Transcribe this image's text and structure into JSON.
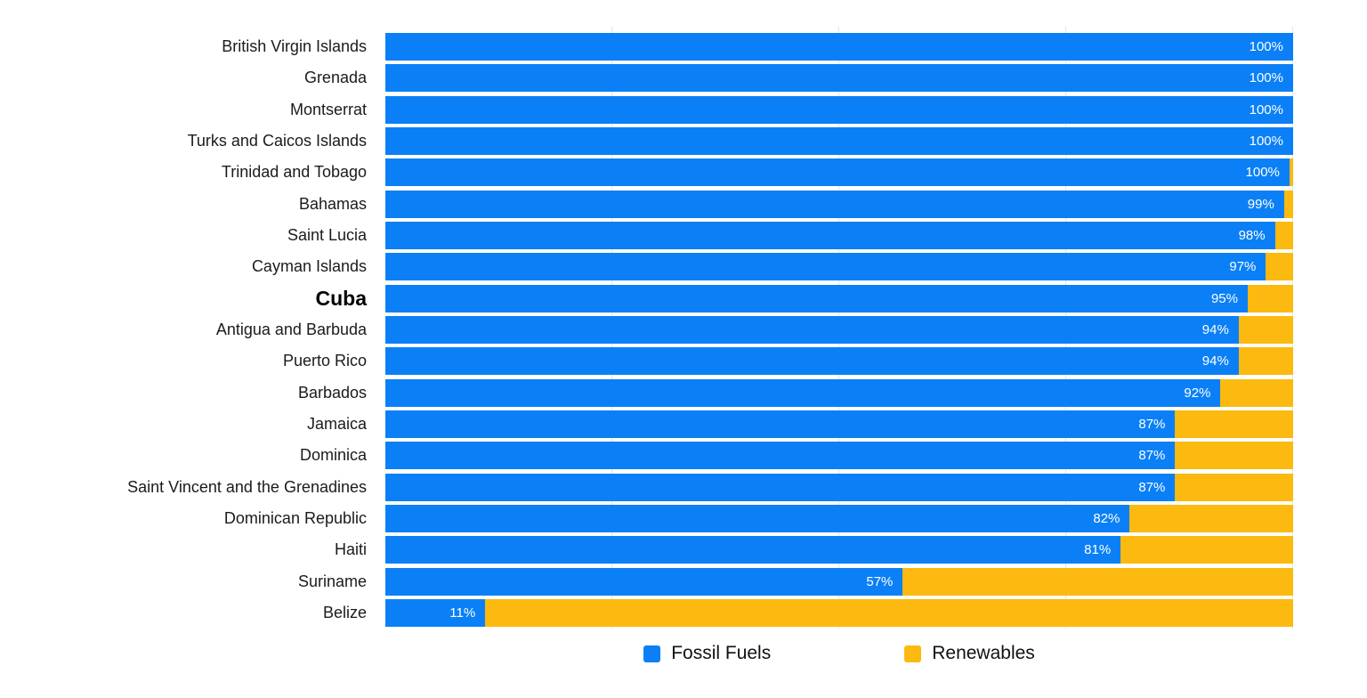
{
  "chart_data": {
    "type": "bar",
    "orientation": "horizontal",
    "stacked": true,
    "unit": "%",
    "xlim": [
      0,
      100
    ],
    "grid": true,
    "gridlines_pct": [
      25,
      50,
      75,
      100
    ],
    "legend_position": "bottom",
    "legend": [
      {
        "name": "Fossil Fuels",
        "color": "#0b80f6"
      },
      {
        "name": "Renewables",
        "color": "#fcb90f"
      }
    ],
    "rows": [
      {
        "country": "British Virgin Islands",
        "fossil_pct": 100,
        "renewables_pct": 0,
        "label": "100%",
        "emphasis": false
      },
      {
        "country": "Grenada",
        "fossil_pct": 100,
        "renewables_pct": 0,
        "label": "100%",
        "emphasis": false
      },
      {
        "country": "Montserrat",
        "fossil_pct": 100,
        "renewables_pct": 0,
        "label": "100%",
        "emphasis": false
      },
      {
        "country": "Turks and Caicos Islands",
        "fossil_pct": 100,
        "renewables_pct": 0,
        "label": "100%",
        "emphasis": false
      },
      {
        "country": "Trinidad and Tobago",
        "fossil_pct": 99.6,
        "renewables_pct": 0.4,
        "label": "100%",
        "emphasis": false
      },
      {
        "country": "Bahamas",
        "fossil_pct": 99,
        "renewables_pct": 1,
        "label": "99%",
        "emphasis": false
      },
      {
        "country": "Saint Lucia",
        "fossil_pct": 98,
        "renewables_pct": 2,
        "label": "98%",
        "emphasis": false
      },
      {
        "country": "Cayman Islands",
        "fossil_pct": 97,
        "renewables_pct": 3,
        "label": "97%",
        "emphasis": false
      },
      {
        "country": "Cuba",
        "fossil_pct": 95,
        "renewables_pct": 5,
        "label": "95%",
        "emphasis": true
      },
      {
        "country": "Antigua and Barbuda",
        "fossil_pct": 94,
        "renewables_pct": 6,
        "label": "94%",
        "emphasis": false
      },
      {
        "country": "Puerto Rico",
        "fossil_pct": 94,
        "renewables_pct": 6,
        "label": "94%",
        "emphasis": false
      },
      {
        "country": "Barbados",
        "fossil_pct": 92,
        "renewables_pct": 8,
        "label": "92%",
        "emphasis": false
      },
      {
        "country": "Jamaica",
        "fossil_pct": 87,
        "renewables_pct": 13,
        "label": "87%",
        "emphasis": false
      },
      {
        "country": "Dominica",
        "fossil_pct": 87,
        "renewables_pct": 13,
        "label": "87%",
        "emphasis": false
      },
      {
        "country": "Saint Vincent and the Grenadines",
        "fossil_pct": 87,
        "renewables_pct": 13,
        "label": "87%",
        "emphasis": false
      },
      {
        "country": "Dominican Republic",
        "fossil_pct": 82,
        "renewables_pct": 18,
        "label": "82%",
        "emphasis": false
      },
      {
        "country": "Haiti",
        "fossil_pct": 81,
        "renewables_pct": 19,
        "label": "81%",
        "emphasis": false
      },
      {
        "country": "Suriname",
        "fossil_pct": 57,
        "renewables_pct": 43,
        "label": "57%",
        "emphasis": false
      },
      {
        "country": "Belize",
        "fossil_pct": 11,
        "renewables_pct": 89,
        "label": "11%",
        "emphasis": false
      }
    ]
  },
  "colors": {
    "fossil": "#0b80f6",
    "renewables": "#fcb90f",
    "gridline": "#e4e6e8",
    "label_text": "#1b1b1b",
    "value_text": "#ffffff"
  }
}
